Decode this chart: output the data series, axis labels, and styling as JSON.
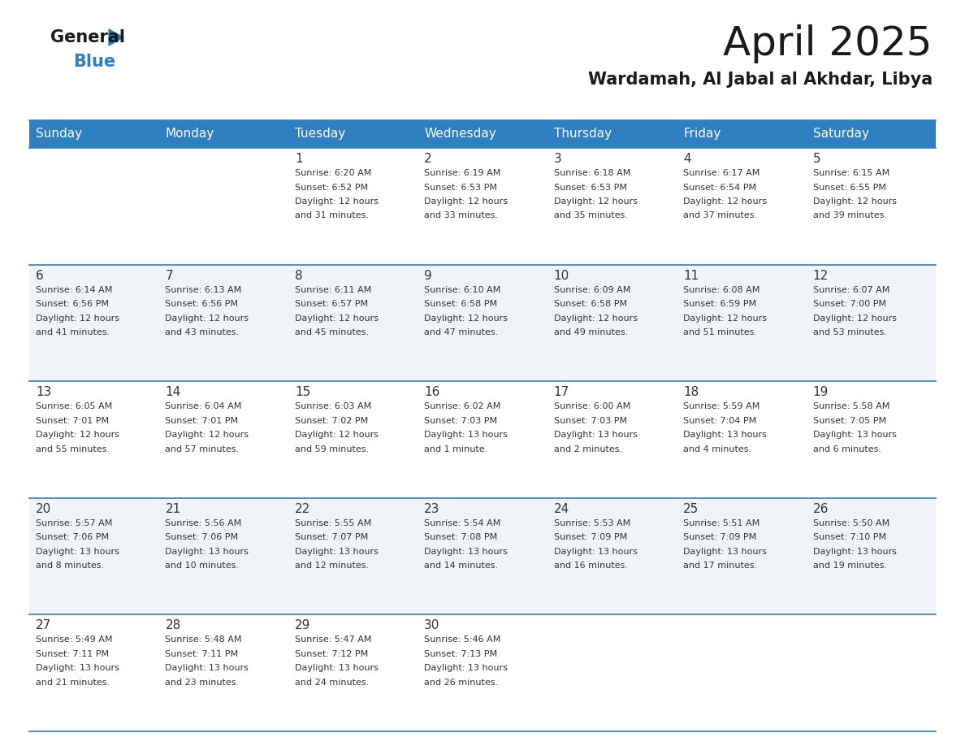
{
  "title": "April 2025",
  "subtitle": "Wardamah, Al Jabal al Akhdar, Libya",
  "days_of_week": [
    "Sunday",
    "Monday",
    "Tuesday",
    "Wednesday",
    "Thursday",
    "Friday",
    "Saturday"
  ],
  "header_bg": "#2E7FBF",
  "header_text": "#FFFFFF",
  "row_bg_odd": "#F0F4F8",
  "row_bg_even": "#FFFFFF",
  "separator_color": "#2E7FBF",
  "text_color": "#333333",
  "calendar_data": [
    [
      {
        "day": "",
        "info": ""
      },
      {
        "day": "",
        "info": ""
      },
      {
        "day": "1",
        "info": "Sunrise: 6:20 AM\nSunset: 6:52 PM\nDaylight: 12 hours\nand 31 minutes."
      },
      {
        "day": "2",
        "info": "Sunrise: 6:19 AM\nSunset: 6:53 PM\nDaylight: 12 hours\nand 33 minutes."
      },
      {
        "day": "3",
        "info": "Sunrise: 6:18 AM\nSunset: 6:53 PM\nDaylight: 12 hours\nand 35 minutes."
      },
      {
        "day": "4",
        "info": "Sunrise: 6:17 AM\nSunset: 6:54 PM\nDaylight: 12 hours\nand 37 minutes."
      },
      {
        "day": "5",
        "info": "Sunrise: 6:15 AM\nSunset: 6:55 PM\nDaylight: 12 hours\nand 39 minutes."
      }
    ],
    [
      {
        "day": "6",
        "info": "Sunrise: 6:14 AM\nSunset: 6:56 PM\nDaylight: 12 hours\nand 41 minutes."
      },
      {
        "day": "7",
        "info": "Sunrise: 6:13 AM\nSunset: 6:56 PM\nDaylight: 12 hours\nand 43 minutes."
      },
      {
        "day": "8",
        "info": "Sunrise: 6:11 AM\nSunset: 6:57 PM\nDaylight: 12 hours\nand 45 minutes."
      },
      {
        "day": "9",
        "info": "Sunrise: 6:10 AM\nSunset: 6:58 PM\nDaylight: 12 hours\nand 47 minutes."
      },
      {
        "day": "10",
        "info": "Sunrise: 6:09 AM\nSunset: 6:58 PM\nDaylight: 12 hours\nand 49 minutes."
      },
      {
        "day": "11",
        "info": "Sunrise: 6:08 AM\nSunset: 6:59 PM\nDaylight: 12 hours\nand 51 minutes."
      },
      {
        "day": "12",
        "info": "Sunrise: 6:07 AM\nSunset: 7:00 PM\nDaylight: 12 hours\nand 53 minutes."
      }
    ],
    [
      {
        "day": "13",
        "info": "Sunrise: 6:05 AM\nSunset: 7:01 PM\nDaylight: 12 hours\nand 55 minutes."
      },
      {
        "day": "14",
        "info": "Sunrise: 6:04 AM\nSunset: 7:01 PM\nDaylight: 12 hours\nand 57 minutes."
      },
      {
        "day": "15",
        "info": "Sunrise: 6:03 AM\nSunset: 7:02 PM\nDaylight: 12 hours\nand 59 minutes."
      },
      {
        "day": "16",
        "info": "Sunrise: 6:02 AM\nSunset: 7:03 PM\nDaylight: 13 hours\nand 1 minute."
      },
      {
        "day": "17",
        "info": "Sunrise: 6:00 AM\nSunset: 7:03 PM\nDaylight: 13 hours\nand 2 minutes."
      },
      {
        "day": "18",
        "info": "Sunrise: 5:59 AM\nSunset: 7:04 PM\nDaylight: 13 hours\nand 4 minutes."
      },
      {
        "day": "19",
        "info": "Sunrise: 5:58 AM\nSunset: 7:05 PM\nDaylight: 13 hours\nand 6 minutes."
      }
    ],
    [
      {
        "day": "20",
        "info": "Sunrise: 5:57 AM\nSunset: 7:06 PM\nDaylight: 13 hours\nand 8 minutes."
      },
      {
        "day": "21",
        "info": "Sunrise: 5:56 AM\nSunset: 7:06 PM\nDaylight: 13 hours\nand 10 minutes."
      },
      {
        "day": "22",
        "info": "Sunrise: 5:55 AM\nSunset: 7:07 PM\nDaylight: 13 hours\nand 12 minutes."
      },
      {
        "day": "23",
        "info": "Sunrise: 5:54 AM\nSunset: 7:08 PM\nDaylight: 13 hours\nand 14 minutes."
      },
      {
        "day": "24",
        "info": "Sunrise: 5:53 AM\nSunset: 7:09 PM\nDaylight: 13 hours\nand 16 minutes."
      },
      {
        "day": "25",
        "info": "Sunrise: 5:51 AM\nSunset: 7:09 PM\nDaylight: 13 hours\nand 17 minutes."
      },
      {
        "day": "26",
        "info": "Sunrise: 5:50 AM\nSunset: 7:10 PM\nDaylight: 13 hours\nand 19 minutes."
      }
    ],
    [
      {
        "day": "27",
        "info": "Sunrise: 5:49 AM\nSunset: 7:11 PM\nDaylight: 13 hours\nand 21 minutes."
      },
      {
        "day": "28",
        "info": "Sunrise: 5:48 AM\nSunset: 7:11 PM\nDaylight: 13 hours\nand 23 minutes."
      },
      {
        "day": "29",
        "info": "Sunrise: 5:47 AM\nSunset: 7:12 PM\nDaylight: 13 hours\nand 24 minutes."
      },
      {
        "day": "30",
        "info": "Sunrise: 5:46 AM\nSunset: 7:13 PM\nDaylight: 13 hours\nand 26 minutes."
      },
      {
        "day": "",
        "info": ""
      },
      {
        "day": "",
        "info": ""
      },
      {
        "day": "",
        "info": ""
      }
    ]
  ],
  "title_fontsize": 36,
  "subtitle_fontsize": 15,
  "day_number_fontsize": 11,
  "cell_text_fontsize": 8,
  "header_fontsize": 11
}
